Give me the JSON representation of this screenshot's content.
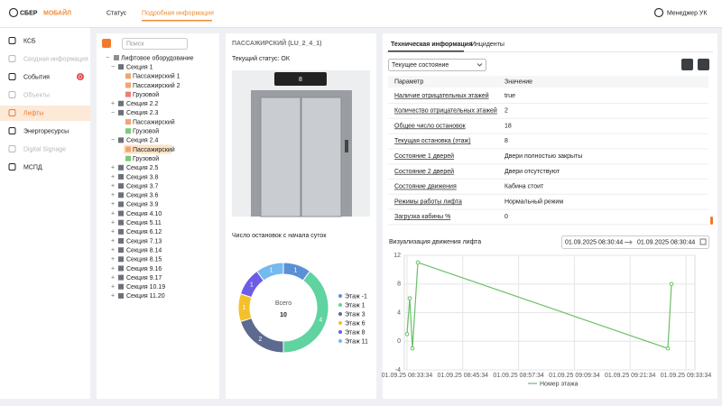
{
  "header": {
    "logo": [
      "СБЕР",
      "МОБАЙЛ"
    ],
    "tabs": [
      "Статус",
      "Подробная информация"
    ],
    "user": "Менеджер УК"
  },
  "sidebar": {
    "items": [
      {
        "label": "КСБ"
      },
      {
        "label": "Сводная информация"
      },
      {
        "label": "События",
        "badge": 0
      },
      {
        "label": "Объекты"
      },
      {
        "label": "Лифты"
      },
      {
        "label": "Энергоресурсы"
      },
      {
        "label": "Digital Signage"
      },
      {
        "label": "МСПД"
      }
    ]
  },
  "tree": {
    "search": "Поиск",
    "root": "Лифтовое оборудование",
    "sections": [
      {
        "name": "Секция 1",
        "children": [
          "Пассажирский 1",
          "Пассажирский 2",
          "Грузовой"
        ]
      },
      {
        "name": "Секция 2.2",
        "children": []
      },
      {
        "name": "Секция 2.3",
        "children": [
          "Пассажирский",
          "Грузовой"
        ]
      },
      {
        "name": "Секция 2.4",
        "children": [
          "Пассажирский",
          "Грузовой"
        ]
      },
      {
        "name": "Секция 2.5",
        "children": []
      },
      {
        "name": "Секция 3.8",
        "children": []
      },
      {
        "name": "Секция 3.7",
        "children": []
      },
      {
        "name": "Секция 3.6",
        "children": []
      },
      {
        "name": "Секция 3.9",
        "children": []
      },
      {
        "name": "Секция 4.10",
        "children": []
      },
      {
        "name": "Секция 5.11",
        "children": []
      },
      {
        "name": "Секция 6.12",
        "children": []
      },
      {
        "name": "Секция 7.13",
        "children": []
      },
      {
        "name": "Секция 8.14",
        "children": []
      },
      {
        "name": "Секция 8.15",
        "children": []
      },
      {
        "name": "Секция 9.16",
        "children": []
      },
      {
        "name": "Секция 9.17",
        "children": []
      },
      {
        "name": "Секция 10.19",
        "children": []
      },
      {
        "name": "Секция 11.20",
        "children": []
      }
    ]
  },
  "elevator": {
    "title": "ПАССАЖИРСКИЙ (LU_2_4_1)",
    "status": "Текущий статус: ОК",
    "floor_display": 8
  },
  "details": {
    "tabs": [
      "Техническая информация",
      "Инциденты"
    ],
    "select": "Текущее состояние"
  },
  "table": {
    "headers": [
      "Параметр",
      "Значение"
    ],
    "rows": [
      [
        "Наличие отрицательных этажей",
        "true"
      ],
      [
        "Количество отрицательных этажей",
        2
      ],
      [
        "Общее число остановок",
        18
      ],
      [
        "Текущая остановка (этаж)",
        8
      ],
      [
        "Состояние 1 дверей",
        "Двери полностью закрыты"
      ],
      [
        "Состояние 2 дверей",
        "Двери отсутствуют"
      ],
      [
        "Состояние движения",
        "Кабина стоит"
      ],
      [
        "Режимы работы лифта",
        "Нормальный режим"
      ],
      [
        "Загрузка кабины %",
        0
      ]
    ]
  },
  "chart_data": [
    {
      "type": "pie",
      "title": "Число остановок с начала суток",
      "categories": [
        "Этаж -1",
        "Этаж 1",
        "Этаж 3",
        "Этаж 6",
        "Этаж 8",
        "Этаж 11"
      ],
      "values": [
        1,
        4,
        2,
        1,
        1,
        1
      ],
      "colors": [
        "#5b8fd6",
        "#5fd3a0",
        "#5b6a8e",
        "#f5c02a",
        "#6c5ce7",
        "#74b9f0"
      ],
      "center_label": "Всего",
      "total": 10
    },
    {
      "type": "line",
      "title": "Визуализация движения лифта",
      "date_from": "01.09.2025 08:30:44",
      "date_to": "01.09.2025 08:30:44",
      "x": [
        "01.09.25 08:33:34",
        "01.09.25 08:34:09",
        "01.09.25 08:34:44",
        "01.09.25 08:35:54",
        "01.09.25 09:29:41",
        "01.09.25 09:30:28"
      ],
      "series": [
        {
          "name": "Номер этажа",
          "color": "#6abf69",
          "values": [
            1,
            6,
            -1,
            11,
            -1,
            8
          ]
        }
      ],
      "xlim": [
        "01.09.25 08:33:34",
        "01.09.25 09:33:34"
      ],
      "xticks": [
        "01.09.25 08:33:34",
        "01.09.25 08:45:34",
        "01.09.25 08:57:34",
        "01.09.25 09:09:34",
        "01.09.25 09:21:34",
        "01.09.25 09:33:34"
      ],
      "ylim": [
        -4,
        12
      ],
      "yticks": [
        -4,
        0,
        4,
        8,
        12
      ],
      "grid": true
    }
  ]
}
